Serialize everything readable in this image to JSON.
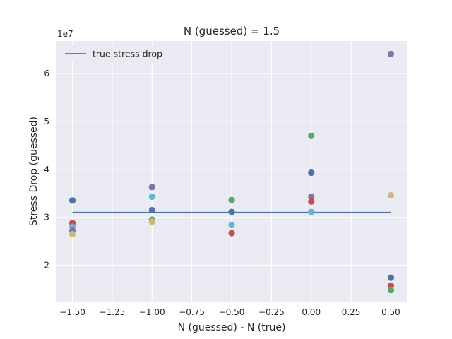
{
  "chart_data": {
    "type": "scatter",
    "title": "N (guessed) = 1.5",
    "xlabel": "N (guessed) - N (true)",
    "ylabel": "Stress Drop (guessed)",
    "y_offset_label": "1e7",
    "xlim": [
      -1.6,
      0.6
    ],
    "ylim": [
      1.24,
      6.68
    ],
    "x_ticks": [
      -1.5,
      -1.25,
      -1.0,
      -0.75,
      -0.5,
      -0.25,
      0.0,
      0.25,
      0.5
    ],
    "x_tick_labels": [
      "−1.50",
      "−1.25",
      "−1.00",
      "−0.75",
      "−0.50",
      "−0.25",
      "0.00",
      "0.25",
      "0.50"
    ],
    "y_ticks": [
      2,
      3,
      4,
      5,
      6
    ],
    "y_tick_labels": [
      "2",
      "3",
      "4",
      "5",
      "6"
    ],
    "grid": true,
    "background": "#eaeaf2",
    "legend": {
      "placement": "top-left",
      "entries": [
        "true stress drop"
      ]
    },
    "line": {
      "name": "true stress drop",
      "color": "#4c72b0",
      "x": [
        -1.5,
        0.5
      ],
      "y": [
        3.1,
        3.1
      ]
    },
    "points": [
      {
        "x": -1.5,
        "y": 3.35,
        "color": "#4c72b0"
      },
      {
        "x": -1.5,
        "y": 2.88,
        "color": "#c44e52"
      },
      {
        "x": -1.5,
        "y": 2.8,
        "color": "#64b5cd"
      },
      {
        "x": -1.5,
        "y": 2.72,
        "color": "#8172b2"
      },
      {
        "x": -1.5,
        "y": 2.65,
        "color": "#ccb974"
      },
      {
        "x": -1.0,
        "y": 3.63,
        "color": "#8172b2"
      },
      {
        "x": -1.0,
        "y": 3.43,
        "color": "#64b5cd"
      },
      {
        "x": -1.0,
        "y": 3.15,
        "color": "#4c72b0"
      },
      {
        "x": -1.0,
        "y": 2.95,
        "color": "#55a868"
      },
      {
        "x": -1.0,
        "y": 2.91,
        "color": "#ccb974"
      },
      {
        "x": -0.5,
        "y": 3.36,
        "color": "#55a868"
      },
      {
        "x": -0.5,
        "y": 3.11,
        "color": "#4c72b0"
      },
      {
        "x": -0.5,
        "y": 2.84,
        "color": "#64b5cd"
      },
      {
        "x": -0.5,
        "y": 2.67,
        "color": "#c44e52"
      },
      {
        "x": 0.0,
        "y": 4.7,
        "color": "#55a868"
      },
      {
        "x": 0.0,
        "y": 3.93,
        "color": "#4c72b0"
      },
      {
        "x": 0.0,
        "y": 3.43,
        "color": "#8172b2"
      },
      {
        "x": 0.0,
        "y": 3.33,
        "color": "#c44e52"
      },
      {
        "x": 0.0,
        "y": 3.11,
        "color": "#64b5cd"
      },
      {
        "x": 0.5,
        "y": 6.41,
        "color": "#8172b2"
      },
      {
        "x": 0.5,
        "y": 3.46,
        "color": "#ccb974"
      },
      {
        "x": 0.5,
        "y": 1.74,
        "color": "#4c72b0"
      },
      {
        "x": 0.5,
        "y": 1.57,
        "color": "#c44e52"
      },
      {
        "x": 0.5,
        "y": 1.48,
        "color": "#55a868"
      }
    ]
  }
}
